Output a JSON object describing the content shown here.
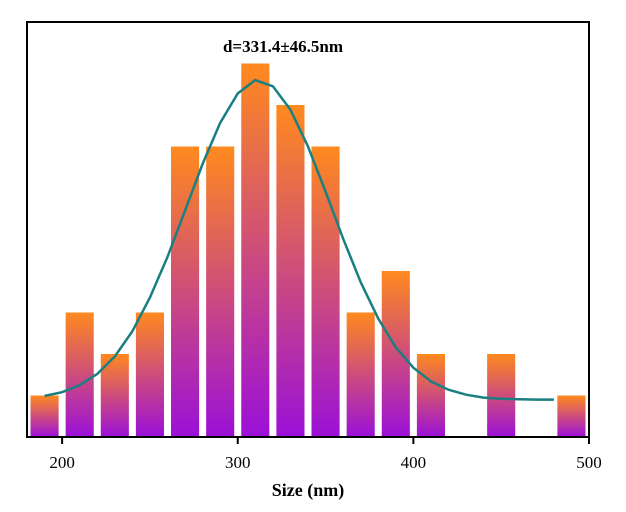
{
  "chart_data": {
    "type": "histogram",
    "annotation": "d=331.4±46.5nm",
    "x_label": "Size (nm)",
    "bins": [
      180,
      200,
      220,
      240,
      260,
      280,
      300,
      320,
      340,
      360,
      380,
      400,
      420,
      440,
      460,
      480,
      500
    ],
    "counts": [
      1,
      3,
      2,
      3,
      7,
      7,
      9,
      8,
      7,
      3,
      4,
      2,
      0,
      2,
      0,
      1
    ],
    "bar_colors": [
      "#ff8a1e",
      "#9b10d8"
    ],
    "fit": {
      "color": "#1a7f80",
      "x": [
        190,
        200,
        210,
        220,
        230,
        240,
        250,
        260,
        270,
        280,
        290,
        300,
        310,
        320,
        330,
        340,
        350,
        360,
        370,
        380,
        390,
        400,
        410,
        420,
        430,
        440,
        450,
        460,
        470,
        480
      ],
      "y": [
        0.99,
        1.08,
        1.25,
        1.52,
        1.94,
        2.55,
        3.36,
        4.34,
        5.46,
        6.58,
        7.57,
        8.28,
        8.6,
        8.45,
        7.89,
        7.0,
        5.91,
        4.78,
        3.73,
        2.85,
        2.16,
        1.67,
        1.34,
        1.14,
        1.02,
        0.95,
        0.92,
        0.91,
        0.9,
        0.9
      ]
    },
    "xlim": [
      180,
      500
    ],
    "ylim": [
      0,
      10
    ],
    "xticks": [
      200,
      300,
      400,
      500
    ]
  }
}
